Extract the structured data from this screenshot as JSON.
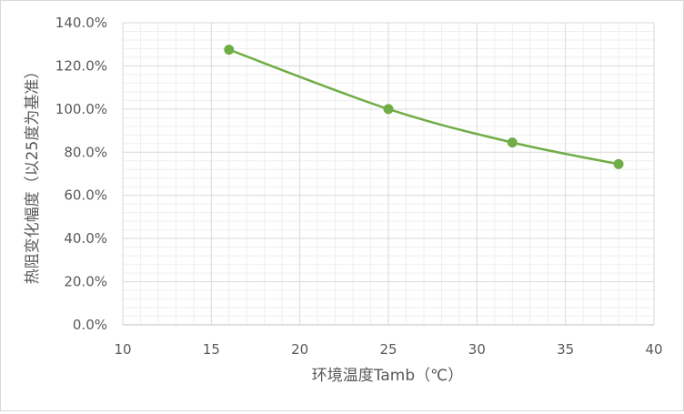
{
  "chart_data": {
    "type": "scatter",
    "style": "smooth-line-with-markers",
    "title": "",
    "xlabel": "环境温度Tamb（℃）",
    "ylabel": "热阻变化幅度（以25度为基准）",
    "xlim": [
      10,
      40
    ],
    "xticks": [
      10,
      15,
      20,
      25,
      30,
      35,
      40
    ],
    "xtick_labels": [
      "10",
      "15",
      "20",
      "25",
      "30",
      "35",
      "40"
    ],
    "ylim": [
      0,
      1.4
    ],
    "yticks": [
      0,
      0.2,
      0.4,
      0.6,
      0.8,
      1.0,
      1.2,
      1.4
    ],
    "ytick_labels": [
      "0.0%",
      "20.0%",
      "40.0%",
      "60.0%",
      "80.0%",
      "100.0%",
      "120.0%",
      "140.0%"
    ],
    "grid": true,
    "legend": "none",
    "series": [
      {
        "name": "热阻变化幅度",
        "color": "#70ad47",
        "x": [
          16,
          25,
          32,
          38
        ],
        "y": [
          1.275,
          1.0,
          0.845,
          0.745
        ]
      }
    ]
  }
}
